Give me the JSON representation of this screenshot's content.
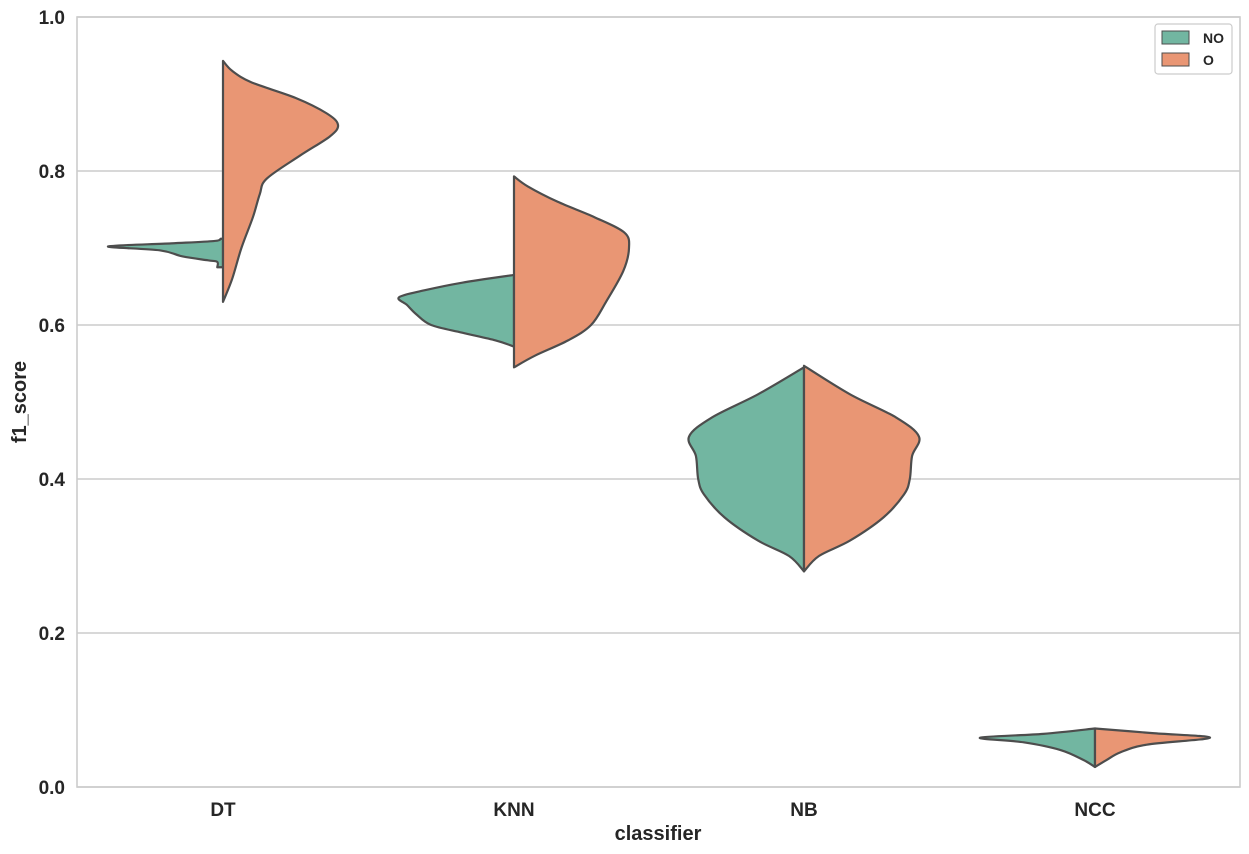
{
  "chart_data": {
    "type": "violin",
    "split": true,
    "categories": [
      "DT",
      "KNN",
      "NB",
      "NCC"
    ],
    "xlabel": "classifier",
    "ylabel": "f1_score",
    "ylim": [
      0,
      1
    ],
    "yticks": [
      "0.0",
      "0.2",
      "0.4",
      "0.6",
      "0.8",
      "1.0"
    ],
    "grid": "horizontal",
    "legend": {
      "placement": "top-right"
    },
    "series": [
      {
        "name": "NO",
        "color": "#72b6a1",
        "side": "left",
        "profiles": [
          {
            "category": "DT",
            "min": 0.675,
            "max": 0.712,
            "shape": [
              [
                0.675,
                0.05
              ],
              [
                0.682,
                0.05
              ],
              [
                0.684,
                0.13
              ],
              [
                0.689,
                0.35
              ],
              [
                0.697,
                0.55
              ],
              [
                0.702,
                1.0
              ],
              [
                0.706,
                0.45
              ],
              [
                0.709,
                0.08
              ],
              [
                0.712,
                0.02
              ]
            ]
          },
          {
            "category": "KNN",
            "min": 0.572,
            "max": 0.665,
            "shape": [
              [
                0.572,
                0.0
              ],
              [
                0.58,
                0.16
              ],
              [
                0.59,
                0.45
              ],
              [
                0.6,
                0.72
              ],
              [
                0.614,
                0.85
              ],
              [
                0.626,
                0.93
              ],
              [
                0.636,
                1.0
              ],
              [
                0.645,
                0.78
              ],
              [
                0.655,
                0.45
              ],
              [
                0.665,
                0.0
              ]
            ]
          },
          {
            "category": "NB",
            "min": 0.28,
            "max": 0.545,
            "shape": [
              [
                0.28,
                0.0
              ],
              [
                0.3,
                0.13
              ],
              [
                0.32,
                0.4
              ],
              [
                0.35,
                0.69
              ],
              [
                0.38,
                0.87
              ],
              [
                0.4,
                0.92
              ],
              [
                0.43,
                0.94
              ],
              [
                0.455,
                1.0
              ],
              [
                0.48,
                0.8
              ],
              [
                0.51,
                0.4
              ],
              [
                0.545,
                0.0
              ]
            ]
          },
          {
            "category": "NCC",
            "min": 0.026,
            "max": 0.076,
            "shape": [
              [
                0.026,
                0.0
              ],
              [
                0.035,
                0.1
              ],
              [
                0.048,
                0.3
              ],
              [
                0.058,
                0.62
              ],
              [
                0.064,
                1.0
              ],
              [
                0.069,
                0.45
              ],
              [
                0.076,
                0.0
              ]
            ]
          }
        ]
      },
      {
        "name": "O",
        "color": "#e99674",
        "side": "right",
        "profiles": [
          {
            "category": "DT",
            "min": 0.63,
            "max": 0.943,
            "shape": [
              [
                0.63,
                0.0
              ],
              [
                0.66,
                0.08
              ],
              [
                0.7,
                0.16
              ],
              [
                0.74,
                0.26
              ],
              [
                0.77,
                0.32
              ],
              [
                0.79,
                0.38
              ],
              [
                0.82,
                0.67
              ],
              [
                0.845,
                0.93
              ],
              [
                0.86,
                1.0
              ],
              [
                0.875,
                0.9
              ],
              [
                0.895,
                0.63
              ],
              [
                0.915,
                0.25
              ],
              [
                0.93,
                0.08
              ],
              [
                0.943,
                0.0
              ]
            ]
          },
          {
            "category": "KNN",
            "min": 0.545,
            "max": 0.793,
            "shape": [
              [
                0.545,
                0.0
              ],
              [
                0.56,
                0.18
              ],
              [
                0.58,
                0.47
              ],
              [
                0.6,
                0.67
              ],
              [
                0.63,
                0.8
              ],
              [
                0.67,
                0.95
              ],
              [
                0.7,
                1.0
              ],
              [
                0.72,
                0.96
              ],
              [
                0.74,
                0.7
              ],
              [
                0.76,
                0.38
              ],
              [
                0.78,
                0.12
              ],
              [
                0.793,
                0.0
              ]
            ]
          },
          {
            "category": "NB",
            "min": 0.28,
            "max": 0.547,
            "shape": [
              [
                0.28,
                0.0
              ],
              [
                0.3,
                0.13
              ],
              [
                0.32,
                0.4
              ],
              [
                0.35,
                0.69
              ],
              [
                0.38,
                0.87
              ],
              [
                0.4,
                0.92
              ],
              [
                0.43,
                0.94
              ],
              [
                0.455,
                1.0
              ],
              [
                0.48,
                0.8
              ],
              [
                0.51,
                0.4
              ],
              [
                0.547,
                0.0
              ]
            ]
          },
          {
            "category": "NCC",
            "min": 0.026,
            "max": 0.076,
            "shape": [
              [
                0.026,
                0.0
              ],
              [
                0.035,
                0.1
              ],
              [
                0.045,
                0.22
              ],
              [
                0.055,
                0.45
              ],
              [
                0.064,
                1.0
              ],
              [
                0.07,
                0.5
              ],
              [
                0.076,
                0.0
              ]
            ]
          }
        ]
      }
    ]
  }
}
